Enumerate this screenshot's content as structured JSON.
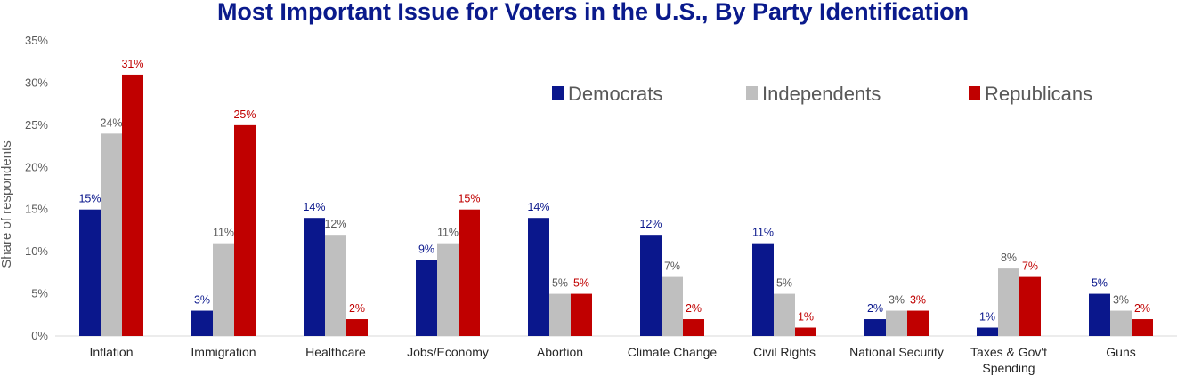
{
  "chart_data": {
    "type": "bar",
    "title": "Most Important Issue for Voters in the U.S., By Party Identification",
    "ylabel": "Share of respondents",
    "xlabel": "",
    "ylim": [
      0,
      35
    ],
    "yticks": [
      0,
      5,
      10,
      15,
      20,
      25,
      30,
      35
    ],
    "ytick_labels": [
      "0%",
      "5%",
      "10%",
      "15%",
      "20%",
      "25%",
      "30%",
      "35%"
    ],
    "grid": false,
    "legend_position": "top-right",
    "categories": [
      [
        "Inflation"
      ],
      [
        "Immigration"
      ],
      [
        "Healthcare"
      ],
      [
        "Jobs/Economy"
      ],
      [
        "Abortion"
      ],
      [
        "Climate Change"
      ],
      [
        "Civil Rights"
      ],
      [
        "National Security"
      ],
      [
        "Taxes & Gov't",
        "Spending"
      ],
      [
        "Guns"
      ]
    ],
    "series": [
      {
        "name": "Democrats",
        "color": "#0a178c",
        "label_color": "#0a178c",
        "values": [
          15,
          3,
          14,
          9,
          14,
          12,
          11,
          2,
          1,
          5
        ]
      },
      {
        "name": "Independents",
        "color": "#bfbfbf",
        "label_color": "#595959",
        "values": [
          24,
          11,
          12,
          11,
          5,
          7,
          5,
          3,
          8,
          3
        ]
      },
      {
        "name": "Republicans",
        "color": "#c00000",
        "label_color": "#c00000",
        "values": [
          31,
          25,
          2,
          15,
          5,
          2,
          1,
          3,
          7,
          2
        ]
      }
    ],
    "value_suffix": "%"
  }
}
